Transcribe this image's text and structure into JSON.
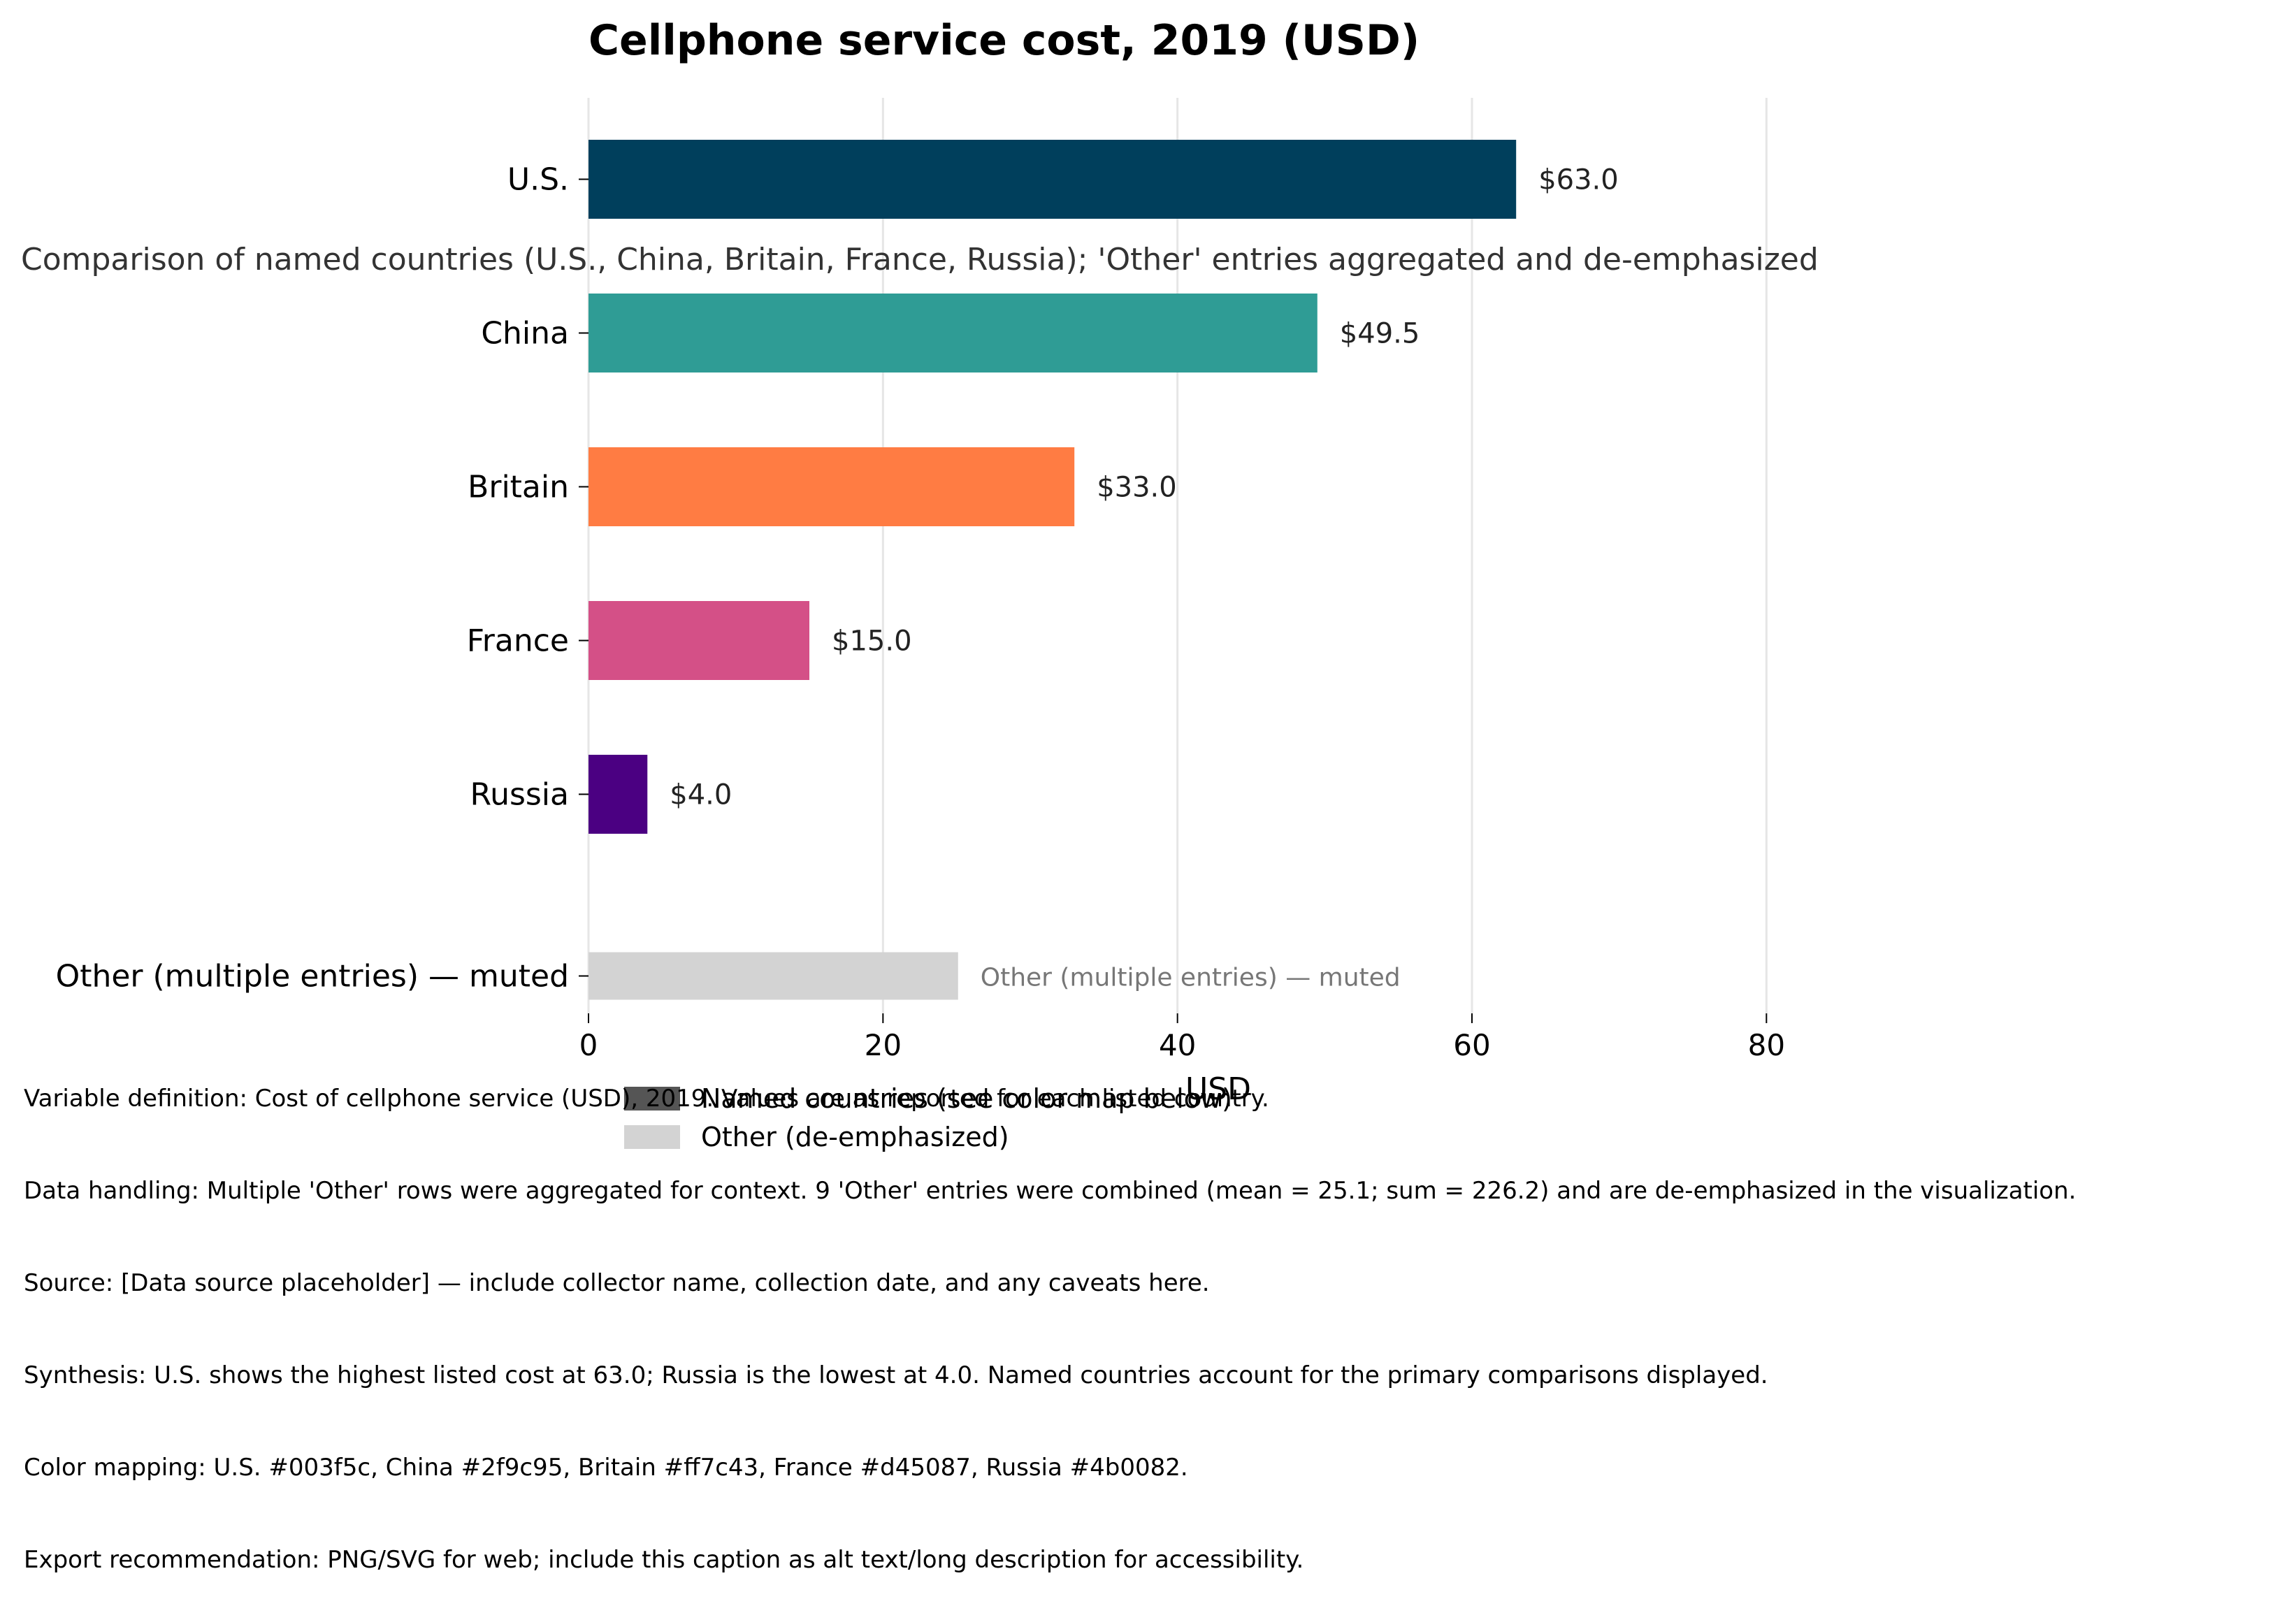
{
  "chart_data": {
    "type": "bar",
    "orientation": "horizontal",
    "title": "Cellphone service cost, 2019 (USD)",
    "subtitle": "Comparison of named countries (U.S., China, Britain, France, Russia); 'Other' entries aggregated and de-emphasized",
    "xlabel": "USD",
    "ylabel": "",
    "xlim": [
      0,
      90
    ],
    "xticks": [
      "0",
      "20",
      "40",
      "60",
      "80"
    ],
    "grid": "vertical",
    "categories": [
      "U.S.",
      "China",
      "Britain",
      "France",
      "Russia",
      "Other (multiple entries) — muted"
    ],
    "values": [
      63.0,
      49.5,
      33.0,
      15.0,
      4.0,
      25.1
    ],
    "value_labels": [
      "$63.0",
      "$49.5",
      "$33.0",
      "$15.0",
      "$4.0",
      "Other (multiple entries) — muted"
    ],
    "colors": [
      "#003f5c",
      "#2f9c95",
      "#ff7c43",
      "#d45087",
      "#4b0082",
      "#d3d3d3"
    ],
    "legend": {
      "position": "bottom-center",
      "entries": [
        {
          "label": "Named countries (see color map below)",
          "color": "#555555"
        },
        {
          "label": "Other (de-emphasized)",
          "color": "#d3d3d3"
        }
      ]
    }
  },
  "caption_lines": [
    "Variable definition: Cost of cellphone service (USD), 2019. Values are as reported for each listed country.",
    "Data handling: Multiple 'Other' rows were aggregated for context. 9 'Other' entries were combined (mean = 25.1; sum = 226.2) and are de-emphasized in the visualization.",
    "Source: [Data source placeholder] — include collector name, collection date, and any caveats here.",
    "Synthesis: U.S. shows the highest listed cost at 63.0; Russia is the lowest at 4.0. Named countries account for the primary comparisons displayed.",
    "Color mapping: U.S. #003f5c, China #2f9c95, Britain #ff7c43, France #d45087, Russia #4b0082.",
    "Export recommendation: PNG/SVG for web; include this caption as alt text/long description for accessibility."
  ]
}
